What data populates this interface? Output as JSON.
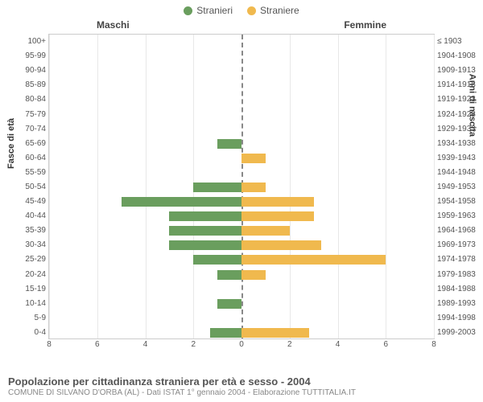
{
  "legend": {
    "male": {
      "label": "Stranieri",
      "color": "#6a9e5e"
    },
    "female": {
      "label": "Straniere",
      "color": "#f0b94e"
    }
  },
  "columnTitles": {
    "left": "Maschi",
    "right": "Femmine"
  },
  "axisLabels": {
    "left": "Fasce di età",
    "right": "Anni di nascita"
  },
  "chart": {
    "type": "population-pyramid",
    "xmax": 8,
    "xticks": [
      8,
      6,
      4,
      2,
      0,
      2,
      4,
      6,
      8
    ],
    "grid_color": "#e8e8e8",
    "background_color": "#ffffff",
    "male_color": "#6a9e5e",
    "female_color": "#f0b94e",
    "rows": [
      {
        "age": "100+",
        "birth": "≤ 1903",
        "m": 0,
        "f": 0
      },
      {
        "age": "95-99",
        "birth": "1904-1908",
        "m": 0,
        "f": 0
      },
      {
        "age": "90-94",
        "birth": "1909-1913",
        "m": 0,
        "f": 0
      },
      {
        "age": "85-89",
        "birth": "1914-1918",
        "m": 0,
        "f": 0
      },
      {
        "age": "80-84",
        "birth": "1919-1923",
        "m": 0,
        "f": 0
      },
      {
        "age": "75-79",
        "birth": "1924-1928",
        "m": 0,
        "f": 0
      },
      {
        "age": "70-74",
        "birth": "1929-1933",
        "m": 0,
        "f": 0
      },
      {
        "age": "65-69",
        "birth": "1934-1938",
        "m": 1,
        "f": 0
      },
      {
        "age": "60-64",
        "birth": "1939-1943",
        "m": 0,
        "f": 1
      },
      {
        "age": "55-59",
        "birth": "1944-1948",
        "m": 0,
        "f": 0
      },
      {
        "age": "50-54",
        "birth": "1949-1953",
        "m": 2,
        "f": 1
      },
      {
        "age": "45-49",
        "birth": "1954-1958",
        "m": 5,
        "f": 3
      },
      {
        "age": "40-44",
        "birth": "1959-1963",
        "m": 3,
        "f": 3
      },
      {
        "age": "35-39",
        "birth": "1964-1968",
        "m": 3,
        "f": 2
      },
      {
        "age": "30-34",
        "birth": "1969-1973",
        "m": 3,
        "f": 3.3
      },
      {
        "age": "25-29",
        "birth": "1974-1978",
        "m": 2,
        "f": 6
      },
      {
        "age": "20-24",
        "birth": "1979-1983",
        "m": 1,
        "f": 1
      },
      {
        "age": "15-19",
        "birth": "1984-1988",
        "m": 0,
        "f": 0
      },
      {
        "age": "10-14",
        "birth": "1989-1993",
        "m": 1,
        "f": 0
      },
      {
        "age": "5-9",
        "birth": "1994-1998",
        "m": 0,
        "f": 0
      },
      {
        "age": "0-4",
        "birth": "1999-2003",
        "m": 1.3,
        "f": 2.8
      }
    ]
  },
  "footer": {
    "title": "Popolazione per cittadinanza straniera per età e sesso - 2004",
    "subtitle": "COMUNE DI SILVANO D'ORBA (AL) - Dati ISTAT 1° gennaio 2004 - Elaborazione TUTTITALIA.IT"
  }
}
